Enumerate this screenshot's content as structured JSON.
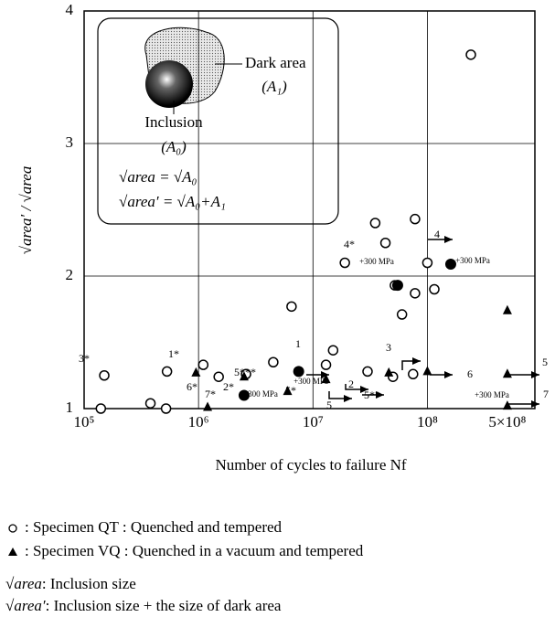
{
  "chart_data": {
    "type": "scatter",
    "y_label": "√area′ / √area",
    "x_label": "Number of cycles to failure Nf",
    "xlog": true,
    "grid": true,
    "xlim": [
      100000,
      870000000
    ],
    "ylim": [
      1,
      4
    ],
    "xticks": [
      {
        "value": 100000,
        "label": "10⁵"
      },
      {
        "value": 1000000,
        "label": "10⁶"
      },
      {
        "value": 10000000,
        "label": "10⁷"
      },
      {
        "value": 100000000,
        "label": "10⁸"
      },
      {
        "value": 500000000,
        "label": "5×10⁸"
      }
    ],
    "yticks": [
      1,
      2,
      3,
      4
    ],
    "series": [
      {
        "marker": "open-circle",
        "color": "#000000",
        "x": [
          140000,
          150000,
          380000,
          520000,
          530000,
          1100000,
          1500000,
          2600000,
          4500000,
          6500000,
          13000000,
          15000000,
          19000000,
          30000000,
          35000000,
          43000000,
          50000000,
          52000000,
          60000000,
          75000000,
          78000000,
          78000000,
          100000000,
          115000000,
          240000000
        ],
        "y": [
          1.0,
          1.25,
          1.04,
          1.0,
          1.28,
          1.33,
          1.24,
          1.26,
          1.35,
          1.77,
          1.33,
          1.44,
          2.1,
          1.28,
          2.4,
          2.25,
          1.24,
          1.93,
          1.71,
          1.26,
          2.43,
          1.87,
          2.1,
          1.9,
          3.67
        ]
      },
      {
        "marker": "triangle",
        "color": "#000000",
        "x": [
          950000,
          1200000,
          2500000,
          6000000,
          13000000,
          46000000,
          100000000,
          500000000,
          500000000,
          500000000
        ],
        "y": [
          1.27,
          1.01,
          1.24,
          1.13,
          1.22,
          1.27,
          1.28,
          1.74,
          1.26,
          1.02
        ]
      },
      {
        "marker": "filled-circle",
        "color": "#000000",
        "x": [
          2500000,
          7500000,
          55000000,
          160000000
        ],
        "y": [
          1.1,
          1.28,
          1.93,
          2.09
        ]
      }
    ],
    "annotations": [
      "3*",
      "1*",
      "6*",
      "7*",
      "2*",
      "5***",
      "4*",
      "1",
      "5*",
      "5",
      "2",
      "3",
      "4",
      "6",
      "5**",
      "5",
      "7",
      "+300 MPa",
      "+300 MPa",
      "+300 MPa",
      "+300 MPa",
      "+300 MPa"
    ],
    "inset": {
      "dark_area": "Dark area",
      "dark_area_symbol": "(A₁)",
      "inclusion": "Inclusion",
      "inclusion_symbol": "(A₀)",
      "formula_1": "√area = √A₀",
      "formula_2": "√area′ = √A₀+A₁"
    },
    "legend": [
      {
        "marker": "open-circle",
        "text": ": Specimen QT : Quenched and tempered"
      },
      {
        "marker": "triangle",
        "text": ": Specimen VQ : Quenched in a vacuum and tempered"
      }
    ],
    "definitions": [
      {
        "term": "√area",
        "text": " : Inclusion size"
      },
      {
        "term": "√area′",
        "text": " : Inclusion size + the size of dark area"
      }
    ]
  }
}
